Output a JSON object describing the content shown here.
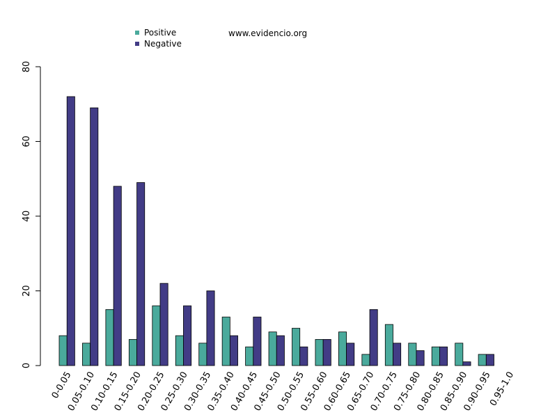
{
  "chart_data": {
    "type": "bar",
    "annotation": "www.evidencio.org",
    "categories": [
      "0-0.05",
      "0.05-0.10",
      "0.10-0.15",
      "0.15-0.20",
      "0.20-0.25",
      "0.25-0.30",
      "0.30-0.35",
      "0.35-0.40",
      "0.40-0.45",
      "0.45-0.50",
      "0.50-0.55",
      "0.55-0.60",
      "0.60-0.65",
      "0.65-0.70",
      "0.70-0.75",
      "0.75-0.80",
      "0.80-0.85",
      "0.85-0.90",
      "0.90-0.95",
      "0.95-1.0"
    ],
    "series": [
      {
        "name": "Positive",
        "color": "#4aaa9c",
        "values": [
          8,
          6,
          15,
          7,
          16,
          8,
          6,
          13,
          5,
          9,
          10,
          7,
          9,
          3,
          11,
          6,
          5,
          6,
          3,
          0
        ]
      },
      {
        "name": "Negative",
        "color": "#423c86",
        "values": [
          72,
          69,
          48,
          49,
          22,
          16,
          20,
          8,
          13,
          8,
          5,
          7,
          6,
          15,
          6,
          4,
          5,
          1,
          3,
          0
        ]
      }
    ],
    "ylim": [
      0,
      80
    ],
    "yticks": [
      0,
      20,
      40,
      60,
      80
    ],
    "legend_position": "top-left",
    "grid": false
  }
}
